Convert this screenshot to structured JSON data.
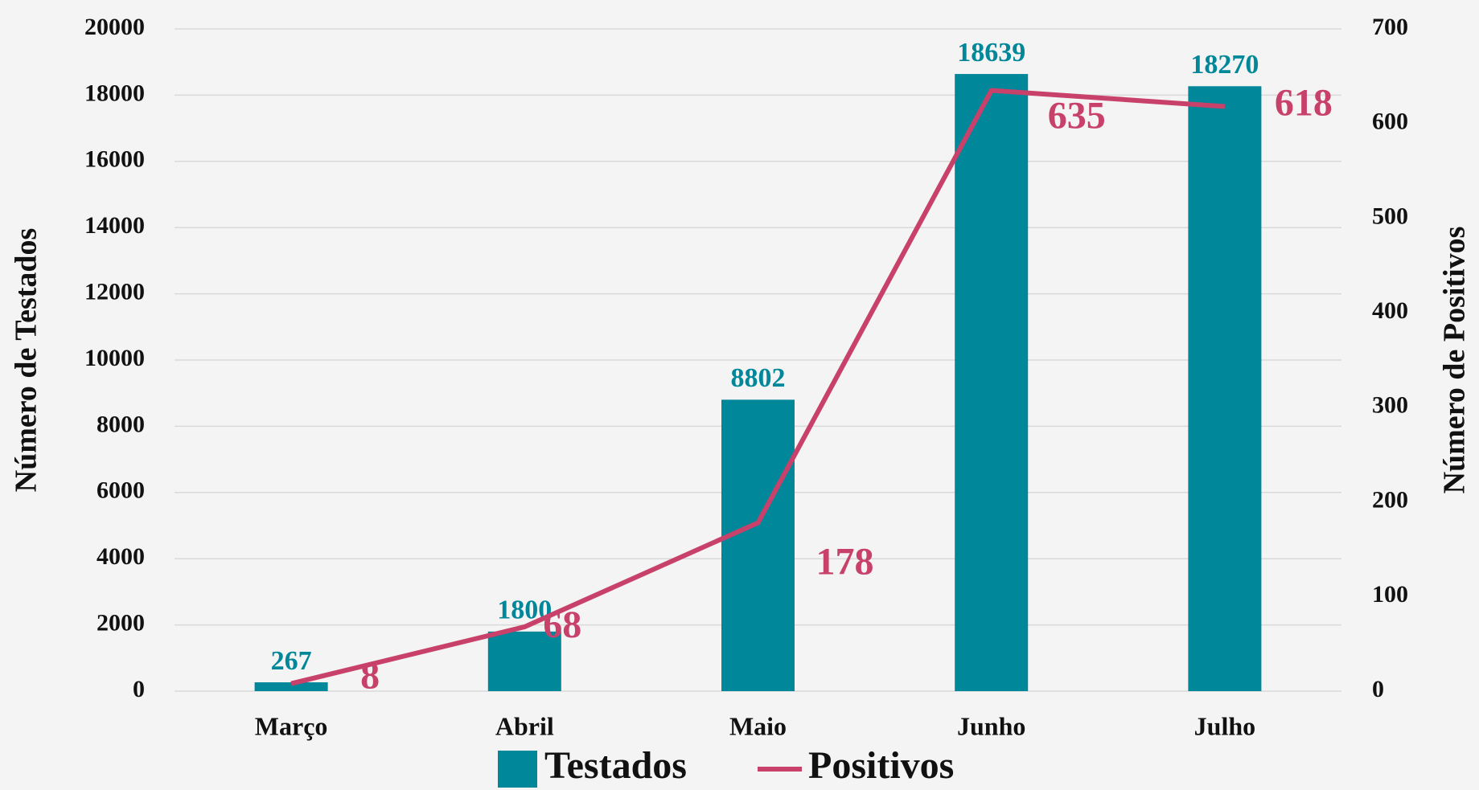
{
  "chart_data": {
    "type": "bar",
    "categories": [
      "Março",
      "Abril",
      "Maio",
      "Junho",
      "Julho"
    ],
    "series": [
      {
        "name": "Testados",
        "type": "bar",
        "color": "#00879a",
        "values": [
          267,
          1800,
          8802,
          18639,
          18270
        ]
      },
      {
        "name": "Positivos",
        "type": "line",
        "axis": "y2",
        "color": "#c8416a",
        "values": [
          8,
          68,
          178,
          635,
          618
        ]
      }
    ],
    "y_label": "Número de Testados",
    "y2_label": "Número de Positivos",
    "ylim": [
      0,
      20000
    ],
    "yticks": [
      0,
      2000,
      4000,
      6000,
      8000,
      10000,
      12000,
      14000,
      16000,
      18000,
      20000
    ],
    "y2lim": [
      0,
      700
    ],
    "y2ticks": [
      0,
      100,
      200,
      300,
      400,
      500,
      600,
      700
    ],
    "grid": true,
    "legend": "bottom"
  }
}
